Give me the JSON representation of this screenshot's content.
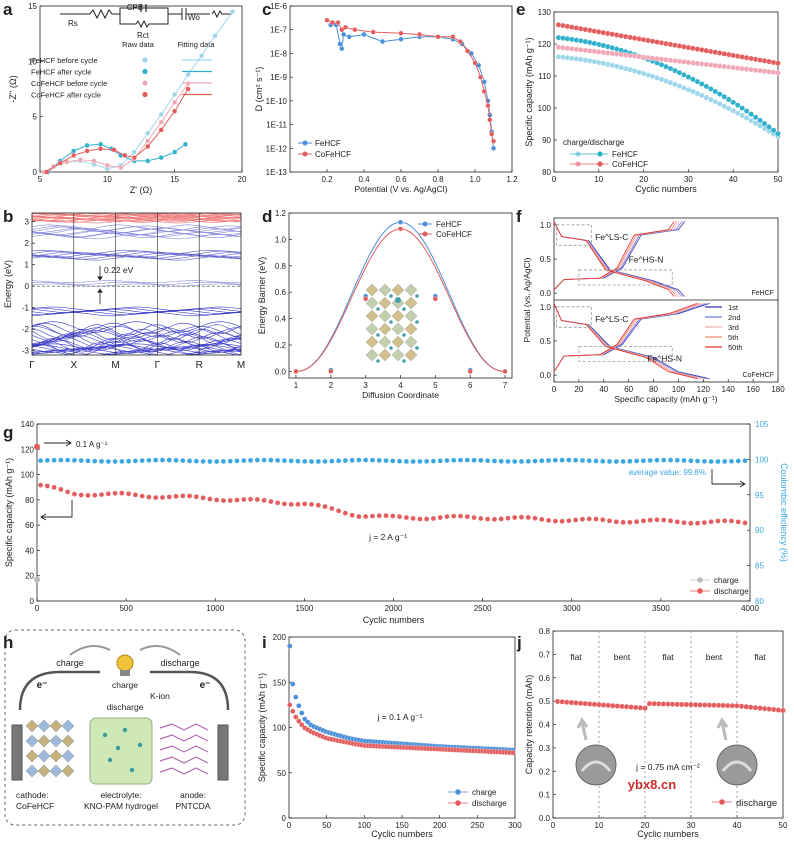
{
  "colors": {
    "blue": "#4a8fd8",
    "red": "#e35d5d",
    "teal": "#2fb0cc",
    "pink": "#f0a8b8",
    "lightblue": "#9ed6ea",
    "darkred": "#c73a3a",
    "band": "#3c3cc8",
    "bandred": "#f07878",
    "cyan": "#3aa8e0",
    "gray": "#999999"
  },
  "chart_data": [
    {
      "panel": "a",
      "type": "scatter",
      "title": "",
      "xlabel": "Z' (Ω)",
      "ylabel": "-Z'' (Ω)",
      "xlim": [
        5,
        20
      ],
      "ylim": [
        0,
        15
      ],
      "xticks": [
        "5",
        "10",
        "15",
        "20"
      ],
      "yticks": [
        "0",
        "5",
        "10",
        "15"
      ],
      "circuit": {
        "rs": "Rs",
        "cpe": "CPE",
        "rct": "Rct",
        "wo": "Wo"
      },
      "legend_header": [
        "Raw data",
        "Fitting data"
      ],
      "series": [
        {
          "name": "FeHCF before cycle",
          "x": [
            5.4,
            6,
            7,
            8,
            9,
            10,
            11,
            12,
            13,
            14,
            15,
            16,
            17,
            18,
            19.3
          ],
          "y": [
            0,
            0.5,
            0.9,
            1.0,
            0.7,
            0.3,
            0.6,
            1.8,
            3.5,
            5.2,
            7.0,
            8.8,
            10.5,
            12.3,
            14.5
          ]
        },
        {
          "name": "FeHCF after cycle",
          "x": [
            5.6,
            6.5,
            7.5,
            8.5,
            9.5,
            10.3,
            11,
            12,
            13,
            14,
            15,
            15.8
          ],
          "y": [
            0,
            1.0,
            1.9,
            2.4,
            2.5,
            2.1,
            1.5,
            1.0,
            1.0,
            1.3,
            1.8,
            2.5
          ]
        },
        {
          "name": "CoFeHCF before cycle",
          "x": [
            5.3,
            6,
            7,
            8,
            9,
            10,
            11,
            12,
            13,
            14,
            15,
            16
          ],
          "y": [
            0,
            0.5,
            0.9,
            1.1,
            1.0,
            0.6,
            0.4,
            1.2,
            2.8,
            4.5,
            6.3,
            8.0
          ]
        },
        {
          "name": "CoFeHCF after cycle",
          "x": [
            5.5,
            6.5,
            7.5,
            8.5,
            9.5,
            10.5,
            11.3,
            12,
            13,
            14,
            15,
            16
          ],
          "y": [
            0,
            0.8,
            1.5,
            1.9,
            2.1,
            2.0,
            1.5,
            1.3,
            2.3,
            3.8,
            5.5,
            7.5
          ]
        }
      ]
    },
    {
      "panel": "b",
      "type": "band-structure",
      "ylabel": "Energy (eV)",
      "ylim": [
        -3,
        3
      ],
      "yticks": [
        "-3",
        "-2",
        "-1",
        "0",
        "1",
        "2",
        "3"
      ],
      "kpoints": [
        "Γ",
        "X",
        "M",
        "Γ",
        "R",
        "M"
      ],
      "gap_label": "0.22 eV"
    },
    {
      "panel": "c",
      "type": "line",
      "xlabel": "Potential (V vs. Ag/AgCl)",
      "ylabel": "D (cm² s⁻¹)",
      "xlim": [
        0.0,
        1.2
      ],
      "ylim_log10": [
        -13,
        -6
      ],
      "xticks": [
        "0.2",
        "0.4",
        "0.6",
        "0.8",
        "1.0",
        "1.2"
      ],
      "yticks": [
        "1E-13",
        "1E-12",
        "1E-11",
        "1E-10",
        "1E-9",
        "1E-8",
        "1E-7",
        "1E-6"
      ],
      "series": [
        {
          "name": "FeHCF",
          "x": [
            0.22,
            0.25,
            0.27,
            0.28,
            0.29,
            0.32,
            0.4,
            0.5,
            0.6,
            0.7,
            0.8,
            0.88,
            0.93,
            0.98,
            1.02,
            1.05,
            1.07,
            1.08,
            1.09,
            1.1
          ],
          "log10y": [
            -6.8,
            -6.8,
            -7.6,
            -7.8,
            -7.2,
            -7.3,
            -7.2,
            -7.5,
            -7.4,
            -7.3,
            -7.3,
            -7.4,
            -7.6,
            -8.0,
            -8.5,
            -9.2,
            -10.0,
            -10.6,
            -11.3,
            -12.0
          ]
        },
        {
          "name": "CoFeHCF",
          "x": [
            0.2,
            0.23,
            0.26,
            0.28,
            0.3,
            0.35,
            0.45,
            0.6,
            0.7,
            0.8,
            0.88,
            0.92,
            0.96,
            1.0,
            1.03,
            1.05,
            1.07,
            1.08,
            1.09,
            1.1
          ],
          "log10y": [
            -6.6,
            -6.7,
            -6.7,
            -7.0,
            -6.9,
            -7.0,
            -7.1,
            -7.15,
            -7.2,
            -7.3,
            -7.3,
            -7.5,
            -7.9,
            -8.4,
            -9.0,
            -9.6,
            -10.2,
            -10.8,
            -11.4,
            -11.7
          ]
        }
      ]
    },
    {
      "panel": "d",
      "type": "line",
      "xlabel": "Diffusion Coordinate",
      "ylabel": "Energy Barrier (eV)",
      "xlim": [
        0.8,
        7.2
      ],
      "ylim": [
        -0.05,
        1.2
      ],
      "xticks": [
        "1",
        "2",
        "3",
        "4",
        "5",
        "6",
        "7"
      ],
      "yticks": [
        "0.0",
        "0.2",
        "0.4",
        "0.6",
        "0.8",
        "1.0",
        "1.2"
      ],
      "series": [
        {
          "name": "FeHCF",
          "x": [
            1,
            2,
            3,
            4,
            5,
            6,
            7
          ],
          "y": [
            0,
            0.01,
            0.57,
            1.13,
            0.57,
            0.01,
            0
          ]
        },
        {
          "name": "CoFeHCF",
          "x": [
            1,
            2,
            3,
            4,
            5,
            6,
            7
          ],
          "y": [
            0,
            0.0,
            0.55,
            1.08,
            0.55,
            0.0,
            0
          ]
        }
      ]
    },
    {
      "panel": "e",
      "type": "line",
      "xlabel": "Cyclic numbers",
      "ylabel": "Specific capacity (mAh g⁻¹)",
      "xlim": [
        0,
        50
      ],
      "ylim": [
        80,
        130
      ],
      "xticks": [
        "0",
        "10",
        "20",
        "30",
        "40",
        "50"
      ],
      "yticks": [
        "80",
        "90",
        "100",
        "110",
        "120",
        "130"
      ],
      "legend_title": "charge/discharge",
      "series": [
        {
          "name": "FeHCF charge",
          "start": 116,
          "end": 91
        },
        {
          "name": "FeHCF discharge",
          "start": 122,
          "end": 92
        },
        {
          "name": "CoFeHCF charge",
          "start": 119,
          "end": 111
        },
        {
          "name": "CoFeHCF discharge",
          "start": 126,
          "end": 114
        }
      ],
      "legend_names": [
        "FeHCF",
        "CoFeHCF"
      ]
    },
    {
      "panel": "f",
      "type": "line",
      "xlabel": "Specific capacity (mAh g⁻¹)",
      "ylabel": "Potential (vs. Ag/AgCl)",
      "xlim": [
        0,
        180
      ],
      "ylim": [
        -0.1,
        1.1
      ],
      "xticks": [
        "0",
        "20",
        "40",
        "60",
        "80",
        "100",
        "120",
        "140",
        "160",
        "180"
      ],
      "yticks": [
        "0.0",
        "0.5",
        "1.0"
      ],
      "subplots": [
        "FeHCF",
        "CoFeHCF"
      ],
      "annot_ls": "Fe^LS-C",
      "annot_hs": "Fe^HS-N",
      "legend": [
        "1st",
        "2nd",
        "3rd",
        "5th",
        "50th"
      ]
    },
    {
      "panel": "g",
      "type": "scatter",
      "xlabel": "Cyclic numbers",
      "ylabel": "Specific capacity (mAh g⁻¹)",
      "y2label": "Coulombic efficiency (%)",
      "xlim": [
        0,
        4000
      ],
      "ylim": [
        0,
        140
      ],
      "y2lim": [
        80,
        105
      ],
      "xticks": [
        "0",
        "500",
        "1000",
        "1500",
        "2000",
        "2500",
        "3000",
        "3500",
        "4000"
      ],
      "yticks": [
        "0",
        "20",
        "40",
        "60",
        "80",
        "100",
        "120",
        "140"
      ],
      "y2ticks": [
        "80",
        "85",
        "90",
        "95",
        "100",
        "105"
      ],
      "annot_rate1": "0.1 A g⁻¹",
      "annot_rate2": "j = 2 A g⁻¹",
      "annot_avg": "average value: 99.8%",
      "legend": [
        "charge",
        "discharge"
      ],
      "series": [
        {
          "name": "discharge",
          "x": [
            0,
            200,
            500,
            1000,
            1500,
            1800,
            2000,
            2500,
            3000,
            3500,
            4000
          ],
          "y": [
            92,
            85,
            84,
            81,
            77,
            68,
            66,
            66,
            64,
            63,
            62
          ]
        },
        {
          "name": "efficiency",
          "x": [
            0,
            4000
          ],
          "y": [
            99.8,
            99.8
          ]
        }
      ],
      "first_points": {
        "charge": 17,
        "discharge": 122
      }
    },
    {
      "panel": "i",
      "type": "line",
      "xlabel": "Cyclic numbers",
      "ylabel": "Specific capacity (mAh g⁻¹)",
      "xlim": [
        0,
        300
      ],
      "ylim": [
        0,
        200
      ],
      "xticks": [
        "0",
        "50",
        "100",
        "150",
        "200",
        "250",
        "300"
      ],
      "yticks": [
        "0",
        "50",
        "100",
        "150",
        "200"
      ],
      "annot": "j = 0.1 A g⁻¹",
      "legend": [
        "charge",
        "discharge"
      ],
      "series": [
        {
          "name": "charge",
          "x": [
            1,
            5,
            10,
            20,
            30,
            50,
            80,
            100,
            150,
            200,
            250,
            300
          ],
          "y": [
            190,
            148,
            130,
            110,
            102,
            95,
            88,
            85,
            82,
            79,
            77,
            75
          ]
        },
        {
          "name": "discharge",
          "x": [
            1,
            5,
            10,
            20,
            30,
            50,
            80,
            100,
            150,
            200,
            250,
            300
          ],
          "y": [
            125,
            118,
            110,
            100,
            95,
            88,
            83,
            80,
            78,
            76,
            74,
            72
          ]
        }
      ]
    },
    {
      "panel": "j",
      "type": "scatter",
      "xlabel": "Cyclic numbers",
      "ylabel": "Capacity retention (mAh)",
      "xlim": [
        0,
        50
      ],
      "ylim": [
        0.0,
        0.8
      ],
      "xticks": [
        "0",
        "10",
        "20",
        "30",
        "40",
        "50"
      ],
      "yticks": [
        "0.0",
        "0.1",
        "0.2",
        "0.3",
        "0.4",
        "0.5",
        "0.6",
        "0.7",
        "0.8"
      ],
      "segments": [
        "flat",
        "bent",
        "flat",
        "bent",
        "flat"
      ],
      "annot": "j = 0.75 mA cm⁻²",
      "legend": [
        "discharge"
      ],
      "watermark": "ybx8.cn",
      "series": [
        {
          "name": "discharge",
          "y_by_segment": [
            [
              0.5,
              0.47
            ],
            [
              0.49,
              0.48
            ],
            [
              0.48,
              0.46
            ]
          ]
        }
      ]
    }
  ],
  "schematic": {
    "panel": "h",
    "charge": "charge",
    "discharge": "discharge",
    "eminus_left": "e⁻",
    "eminus_right": "e⁻",
    "kion": "K-ion",
    "cathode_label": "cathode:",
    "cathode_name": "CoFeHCF",
    "electrolyte_label": "electrolyte:",
    "electrolyte_name": "KNO-PAM hydrogel",
    "anode_label": "anode:",
    "anode_name": "PNTCDA"
  },
  "panel_letters": [
    "a",
    "b",
    "c",
    "d",
    "e",
    "f",
    "g",
    "h",
    "i",
    "j"
  ]
}
